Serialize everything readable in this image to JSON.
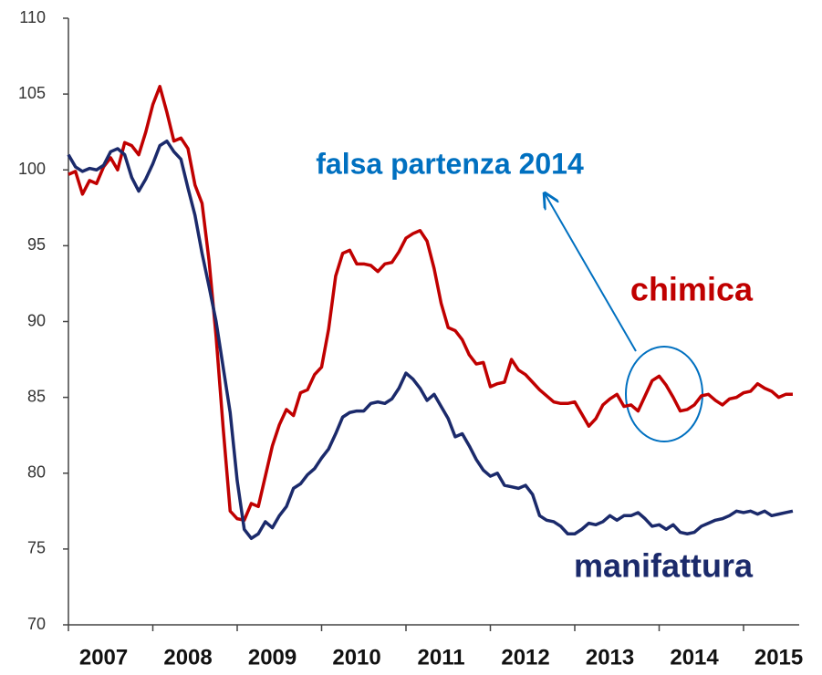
{
  "chart_data": {
    "type": "line",
    "categories": [
      null,
      null,
      null,
      null,
      null,
      "2007",
      null,
      null,
      null,
      null,
      null,
      null,
      null,
      null,
      null,
      null,
      null,
      "2008",
      null,
      null,
      null,
      null,
      null,
      null,
      null,
      null,
      null,
      null,
      null,
      "2009",
      null,
      null,
      null,
      null,
      null,
      null,
      null,
      null,
      null,
      null,
      null,
      "2010",
      null,
      null,
      null,
      null,
      null,
      null,
      null,
      null,
      null,
      null,
      null,
      "2011",
      null,
      null,
      null,
      null,
      null,
      null,
      null,
      null,
      null,
      null,
      null,
      "2012",
      null,
      null,
      null,
      null,
      null,
      null,
      null,
      null,
      null,
      null,
      null,
      "2013",
      null,
      null,
      null,
      null,
      null,
      null,
      null,
      null,
      null,
      null,
      null,
      "2014",
      null,
      null,
      null,
      null,
      null,
      null,
      null,
      null,
      null,
      null,
      null,
      "2015",
      null,
      null
    ],
    "series": [
      {
        "name": "chimica",
        "color": "#c00000",
        "values": [
          99.7,
          99.9,
          98.4,
          99.3,
          99.1,
          100.2,
          100.8,
          100.0,
          101.8,
          101.6,
          101.0,
          102.5,
          104.3,
          105.5,
          103.8,
          101.9,
          102.1,
          101.4,
          99.0,
          97.8,
          94.0,
          89.0,
          83.0,
          77.5,
          77.0,
          76.9,
          78.0,
          77.8,
          79.8,
          81.8,
          83.2,
          84.2,
          83.8,
          85.3,
          85.5,
          86.5,
          87.0,
          89.5,
          93.0,
          94.5,
          94.7,
          93.8,
          93.8,
          93.7,
          93.3,
          93.8,
          93.9,
          94.6,
          95.5,
          95.8,
          96.0,
          95.3,
          93.5,
          91.2,
          89.6,
          89.4,
          88.8,
          87.8,
          87.2,
          87.3,
          85.7,
          85.9,
          86.0,
          87.5,
          86.8,
          86.5,
          86.0,
          85.5,
          85.1,
          84.7,
          84.6,
          84.6,
          84.7,
          83.9,
          83.1,
          83.6,
          84.5,
          84.9,
          85.2,
          84.4,
          84.5,
          84.1,
          85.1,
          86.1,
          86.4,
          85.8,
          85.0,
          84.1,
          84.2,
          84.5,
          85.1,
          85.2,
          84.8,
          84.5,
          84.9,
          85.0,
          85.3,
          85.4,
          85.9,
          85.6,
          85.4,
          85.0,
          85.2,
          85.2
        ]
      },
      {
        "name": "manifattura",
        "color": "#1b2a6b",
        "values": [
          101.0,
          100.2,
          99.9,
          100.1,
          100.0,
          100.3,
          101.2,
          101.4,
          101.0,
          99.5,
          98.6,
          99.4,
          100.4,
          101.6,
          101.9,
          101.2,
          100.7,
          98.8,
          97.0,
          94.5,
          92.3,
          90.0,
          87.0,
          84.0,
          79.5,
          76.3,
          75.7,
          76.0,
          76.8,
          76.4,
          77.2,
          77.8,
          79.0,
          79.3,
          79.9,
          80.3,
          81.0,
          81.6,
          82.6,
          83.7,
          84.0,
          84.1,
          84.1,
          84.6,
          84.7,
          84.6,
          84.9,
          85.6,
          86.6,
          86.2,
          85.6,
          84.8,
          85.2,
          84.4,
          83.6,
          82.4,
          82.6,
          81.8,
          80.9,
          80.2,
          79.8,
          80.0,
          79.2,
          79.1,
          79.0,
          79.2,
          78.6,
          77.2,
          76.9,
          76.8,
          76.5,
          76.0,
          76.0,
          76.3,
          76.7,
          76.6,
          76.8,
          77.2,
          76.9,
          77.2,
          77.2,
          77.4,
          77.0,
          76.5,
          76.6,
          76.3,
          76.6,
          76.1,
          76.0,
          76.1,
          76.5,
          76.7,
          76.9,
          77.0,
          77.2,
          77.5,
          77.4,
          77.5,
          77.3,
          77.5,
          77.2,
          77.3,
          77.4,
          77.5
        ]
      }
    ],
    "annotations": [
      "falsa partenza 2014"
    ],
    "annotation_color": "#0070c0",
    "ylim": [
      70,
      110
    ],
    "yticks": [
      70,
      75,
      80,
      85,
      90,
      95,
      100,
      105,
      110
    ],
    "grid": false
  }
}
